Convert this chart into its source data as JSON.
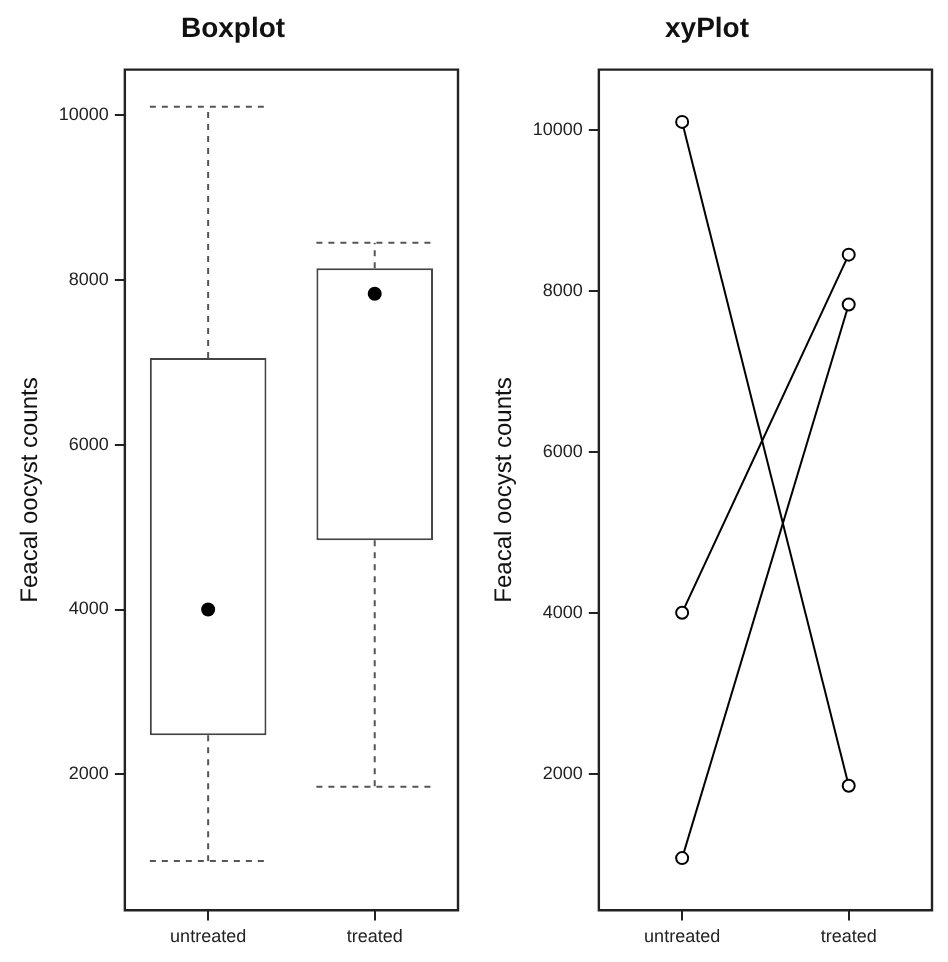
{
  "chart_data": [
    {
      "type": "box",
      "title": "Boxplot",
      "ylabel": "Feacal oocyst counts",
      "categories": [
        "untreated",
        "treated"
      ],
      "boxes": [
        {
          "low": 950,
          "q1": 2475,
          "median": 4000,
          "q3": 7050,
          "high": 10100
        },
        {
          "low": 1850,
          "q1": 4840,
          "median": 7830,
          "q3": 8140,
          "high": 8450
        }
      ],
      "ylim": [
        350,
        10550
      ],
      "yticks": [
        2000,
        4000,
        6000,
        8000,
        10000
      ]
    },
    {
      "type": "line",
      "title": "xyPlot",
      "ylabel": "Feacal oocyst counts",
      "categories": [
        "untreated",
        "treated"
      ],
      "marker": "circle",
      "series": [
        {
          "color": "#000000",
          "values": [
            10100,
            1850
          ]
        },
        {
          "color": "#000000",
          "values": [
            4000,
            8450
          ]
        },
        {
          "color": "#000000",
          "values": [
            950,
            7830
          ]
        }
      ],
      "ylim": [
        300,
        10750
      ],
      "yticks": [
        2000,
        4000,
        6000,
        8000,
        10000
      ]
    }
  ]
}
